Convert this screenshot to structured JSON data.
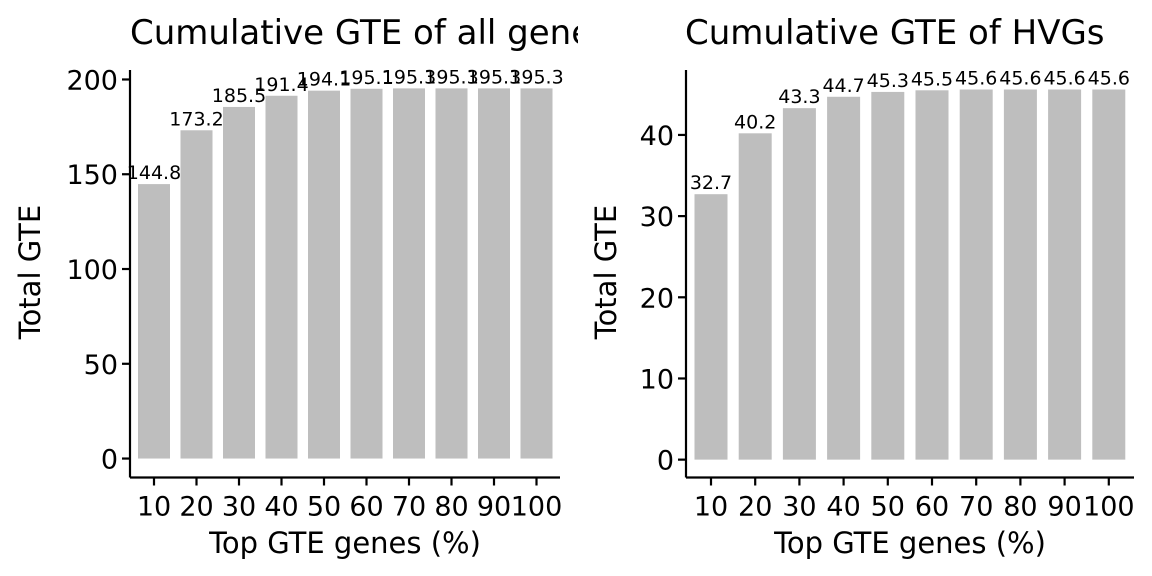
{
  "chart_data": [
    {
      "type": "bar",
      "title": "Cumulative GTE of all genes",
      "xlabel": "Top GTE genes (%)",
      "ylabel": "Total GTE",
      "categories": [
        "10",
        "20",
        "30",
        "40",
        "50",
        "60",
        "70",
        "80",
        "90",
        "100"
      ],
      "values": [
        144.8,
        173.2,
        185.5,
        191.4,
        194.1,
        195.1,
        195.3,
        195.3,
        195.3,
        195.3
      ],
      "data_labels": [
        "144.8",
        "173.2",
        "185.5",
        "191.4",
        "194.1",
        "195.1",
        "195.3",
        "195.3",
        "195.3",
        "195.3"
      ],
      "ylim": [
        -10,
        205
      ],
      "yticks": [
        0,
        50,
        100,
        150,
        200
      ],
      "ytick_labels": [
        "0",
        "50",
        "100",
        "150",
        "200"
      ],
      "bar_color": "#bebebe",
      "grid": false,
      "legend": "none"
    },
    {
      "type": "bar",
      "title": "Cumulative GTE of HVGs",
      "xlabel": "Top GTE genes (%)",
      "ylabel": "Total GTE",
      "categories": [
        "10",
        "20",
        "30",
        "40",
        "50",
        "60",
        "70",
        "80",
        "90",
        "100"
      ],
      "values": [
        32.7,
        40.2,
        43.3,
        44.7,
        45.3,
        45.5,
        45.6,
        45.6,
        45.6,
        45.6
      ],
      "data_labels": [
        "32.7",
        "40.2",
        "43.3",
        "44.7",
        "45.3",
        "45.5",
        "45.6",
        "45.6",
        "45.6",
        "45.6"
      ],
      "ylim": [
        -2.2,
        48
      ],
      "yticks": [
        0,
        10,
        20,
        30,
        40
      ],
      "ytick_labels": [
        "0",
        "10",
        "20",
        "30",
        "40"
      ],
      "bar_color": "#bebebe",
      "grid": false,
      "legend": "none"
    }
  ]
}
